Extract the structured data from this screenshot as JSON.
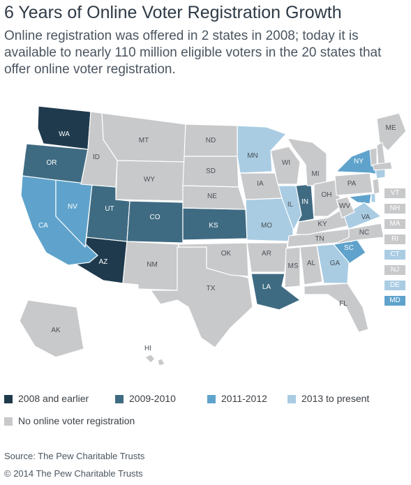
{
  "title": "6 Years of Online Voter Registration Growth",
  "subtitle": "Online registration was offered in 2 states in 2008; today it is available to nearly 110 million eligible voters in the 20 states that offer online voter registration.",
  "colors": {
    "c2008": "#1f3a4d",
    "c2009": "#3f6b82",
    "c2011": "#5fa3cc",
    "c2013": "#a9cce3",
    "none": "#c8c9cb",
    "border": "#ffffff",
    "label_light": "#ffffff",
    "label_dark": "#4a4f55"
  },
  "legend": [
    {
      "key": "c2008",
      "label": "2008 and earlier"
    },
    {
      "key": "c2009",
      "label": "2009-2010"
    },
    {
      "key": "c2011",
      "label": "2011-2012"
    },
    {
      "key": "c2013",
      "label": "2013 to present"
    },
    {
      "key": "none",
      "label": "No online voter registration"
    }
  ],
  "states": [
    {
      "abbr": "WA",
      "cat": "c2008"
    },
    {
      "abbr": "AZ",
      "cat": "c2008"
    },
    {
      "abbr": "OR",
      "cat": "c2009"
    },
    {
      "abbr": "UT",
      "cat": "c2009"
    },
    {
      "abbr": "CO",
      "cat": "c2009"
    },
    {
      "abbr": "KS",
      "cat": "c2009"
    },
    {
      "abbr": "IN",
      "cat": "c2009"
    },
    {
      "abbr": "LA",
      "cat": "c2009"
    },
    {
      "abbr": "CA",
      "cat": "c2011"
    },
    {
      "abbr": "NV",
      "cat": "c2011"
    },
    {
      "abbr": "NY",
      "cat": "c2011"
    },
    {
      "abbr": "SC",
      "cat": "c2011"
    },
    {
      "abbr": "MD",
      "cat": "c2011"
    },
    {
      "abbr": "MN",
      "cat": "c2013"
    },
    {
      "abbr": "IL",
      "cat": "c2013"
    },
    {
      "abbr": "MO",
      "cat": "c2013"
    },
    {
      "abbr": "GA",
      "cat": "c2013"
    },
    {
      "abbr": "VA",
      "cat": "c2013"
    },
    {
      "abbr": "CT",
      "cat": "c2013"
    },
    {
      "abbr": "DE",
      "cat": "c2013"
    },
    {
      "abbr": "MT",
      "cat": "none"
    },
    {
      "abbr": "ID",
      "cat": "none"
    },
    {
      "abbr": "WY",
      "cat": "none"
    },
    {
      "abbr": "ND",
      "cat": "none"
    },
    {
      "abbr": "SD",
      "cat": "none"
    },
    {
      "abbr": "NE",
      "cat": "none"
    },
    {
      "abbr": "NM",
      "cat": "none"
    },
    {
      "abbr": "TX",
      "cat": "none"
    },
    {
      "abbr": "OK",
      "cat": "none"
    },
    {
      "abbr": "IA",
      "cat": "none"
    },
    {
      "abbr": "AR",
      "cat": "none"
    },
    {
      "abbr": "WI",
      "cat": "none"
    },
    {
      "abbr": "MI",
      "cat": "none"
    },
    {
      "abbr": "MS",
      "cat": "none"
    },
    {
      "abbr": "AL",
      "cat": "none"
    },
    {
      "abbr": "TN",
      "cat": "none"
    },
    {
      "abbr": "KY",
      "cat": "none"
    },
    {
      "abbr": "OH",
      "cat": "none"
    },
    {
      "abbr": "WV",
      "cat": "none"
    },
    {
      "abbr": "PA",
      "cat": "none"
    },
    {
      "abbr": "NC",
      "cat": "none"
    },
    {
      "abbr": "FL",
      "cat": "none"
    },
    {
      "abbr": "ME",
      "cat": "none"
    },
    {
      "abbr": "AK",
      "cat": "none"
    },
    {
      "abbr": "HI",
      "cat": "none"
    }
  ],
  "ne_boxes": [
    {
      "abbr": "VT",
      "cat": "none"
    },
    {
      "abbr": "NH",
      "cat": "none"
    },
    {
      "abbr": "MA",
      "cat": "none"
    },
    {
      "abbr": "RI",
      "cat": "none"
    },
    {
      "abbr": "CT",
      "cat": "c2013"
    },
    {
      "abbr": "NJ",
      "cat": "none"
    },
    {
      "abbr": "DE",
      "cat": "c2013"
    },
    {
      "abbr": "MD",
      "cat": "c2011"
    }
  ],
  "footer": {
    "source": "Source: The Pew Charitable Trusts",
    "copyright": "© 2014 The Pew Charitable Trusts"
  }
}
